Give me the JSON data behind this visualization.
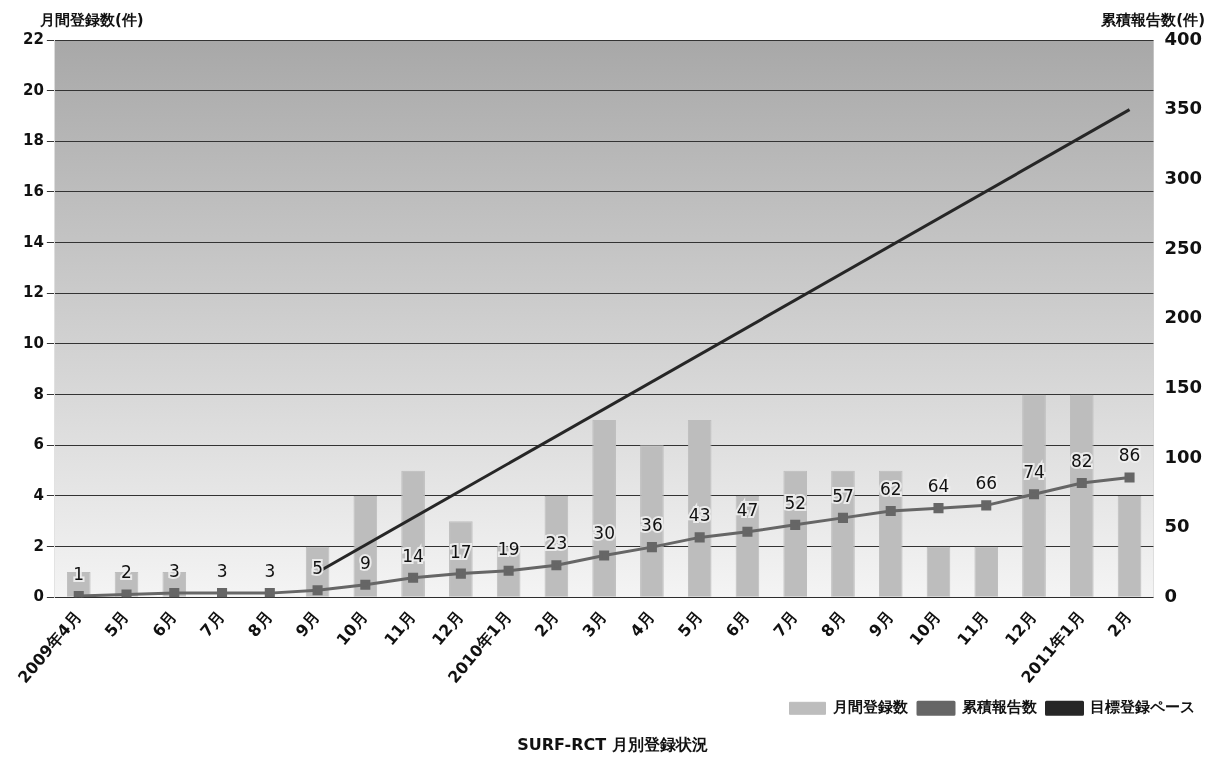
{
  "chart_data": {
    "type": "bar",
    "title": "SURF-RCT 月別登録状況",
    "ylabel": "月間登録数(件)",
    "y2label": "累積報告数(件)",
    "categories": [
      "2009年4月",
      "5月",
      "6月",
      "7月",
      "8月",
      "9月",
      "10月",
      "11月",
      "12月",
      "2010年1月",
      "2月",
      "3月",
      "4月",
      "5月",
      "6月",
      "7月",
      "8月",
      "9月",
      "10月",
      "11月",
      "12月",
      "2011年1月",
      "2月"
    ],
    "series": [
      {
        "name": "月間登録数",
        "color": "#bdbdbd",
        "values": [
          1,
          1,
          1,
          0,
          0,
          2,
          4,
          5,
          3,
          2,
          4,
          7,
          6,
          7,
          4,
          5,
          5,
          5,
          2,
          2,
          8,
          8,
          4
        ]
      },
      {
        "name": "累積報告数",
        "type": "line",
        "axis": "y2",
        "color": "#666666",
        "marker": "square",
        "values": [
          1,
          2,
          3,
          3,
          3,
          5,
          9,
          14,
          17,
          19,
          23,
          30,
          36,
          43,
          47,
          52,
          57,
          62,
          64,
          66,
          74,
          82,
          86
        ],
        "value_labels": [
          "1",
          "2",
          "3",
          "3",
          "3",
          "5",
          "9",
          "14",
          "17",
          "19",
          "23",
          "30",
          "36",
          "43",
          "47",
          "52",
          "57",
          "62",
          "64",
          "66",
          "74",
          "82",
          "86"
        ]
      },
      {
        "name": "目標登録ペース",
        "type": "line",
        "axis": "y2",
        "color": "#262626",
        "marker": "none",
        "values": [
          null,
          null,
          null,
          null,
          null,
          18,
          null,
          null,
          null,
          null,
          null,
          null,
          null,
          null,
          null,
          null,
          null,
          null,
          null,
          null,
          null,
          null,
          350
        ]
      }
    ],
    "ylim": [
      0,
      22
    ],
    "yticks": [
      0,
      2,
      4,
      6,
      8,
      10,
      12,
      14,
      16,
      18,
      20,
      22
    ],
    "y2lim": [
      0,
      400
    ],
    "y2ticks": [
      0,
      50,
      100,
      150,
      200,
      250,
      300,
      350,
      400
    ],
    "grid": "y",
    "legend": "bottom right"
  }
}
